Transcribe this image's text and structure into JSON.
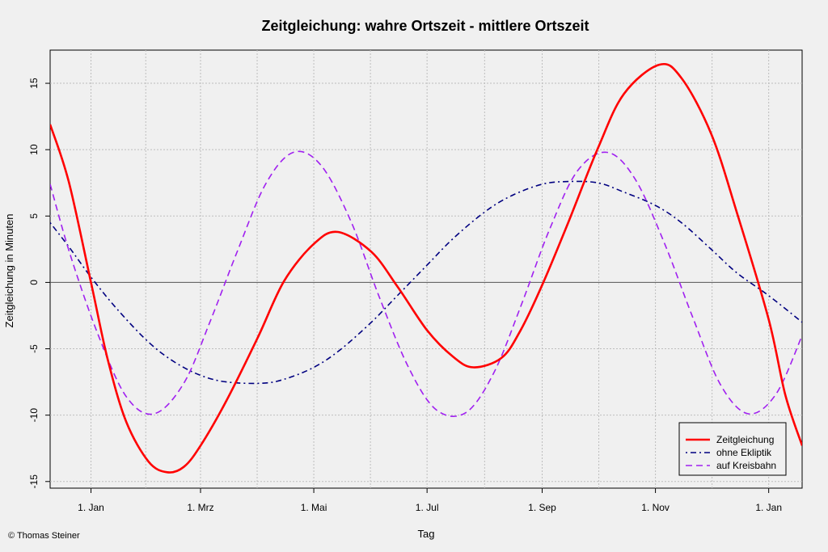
{
  "chart_data": {
    "type": "line",
    "title": "Zeitgleichung: wahre Ortszeit - mittlere Ortszeit",
    "xlabel": "Tag",
    "ylabel": "Zeitgleichung in Minuten",
    "xlim": [
      "2010-12-10",
      "2012-01-19"
    ],
    "ylim": [
      -15.5,
      17.5
    ],
    "x_ticks": [
      {
        "date": "2011-01-01",
        "label": "1. Jan"
      },
      {
        "date": "2011-03-01",
        "label": "1. Mrz"
      },
      {
        "date": "2011-05-01",
        "label": "1. Mai"
      },
      {
        "date": "2011-07-01",
        "label": "1. Jul"
      },
      {
        "date": "2011-09-01",
        "label": "1. Sep"
      },
      {
        "date": "2011-11-01",
        "label": "1. Nov"
      },
      {
        "date": "2012-01-01",
        "label": "1. Jan"
      }
    ],
    "y_ticks": [
      -15,
      -10,
      -5,
      0,
      5,
      10,
      15
    ],
    "grid": true,
    "legend_position": "bottom-right",
    "series": [
      {
        "name": "Zeitgleichung",
        "color": "#ff0000",
        "style": "solid",
        "points": [
          [
            "2010-12-10",
            11.9
          ],
          [
            "2010-12-20",
            7.6
          ],
          [
            "2011-01-01",
            0.0
          ],
          [
            "2011-01-10",
            -5.8
          ],
          [
            "2011-01-20",
            -10.5
          ],
          [
            "2011-02-01",
            -13.5
          ],
          [
            "2011-02-11",
            -14.3
          ],
          [
            "2011-02-20",
            -13.9
          ],
          [
            "2011-03-01",
            -12.3
          ],
          [
            "2011-03-15",
            -8.9
          ],
          [
            "2011-04-01",
            -4.1
          ],
          [
            "2011-04-15",
            0.1
          ],
          [
            "2011-05-01",
            2.9
          ],
          [
            "2011-05-14",
            3.8
          ],
          [
            "2011-06-01",
            2.3
          ],
          [
            "2011-06-15",
            -0.3
          ],
          [
            "2011-07-01",
            -3.6
          ],
          [
            "2011-07-15",
            -5.6
          ],
          [
            "2011-07-26",
            -6.4
          ],
          [
            "2011-08-10",
            -5.7
          ],
          [
            "2011-08-20",
            -3.7
          ],
          [
            "2011-09-01",
            -0.2
          ],
          [
            "2011-09-15",
            4.5
          ],
          [
            "2011-10-01",
            10.1
          ],
          [
            "2011-10-15",
            14.2
          ],
          [
            "2011-11-03",
            16.4
          ],
          [
            "2011-11-15",
            15.4
          ],
          [
            "2011-12-01",
            11.2
          ],
          [
            "2011-12-15",
            5.2
          ],
          [
            "2012-01-01",
            -2.8
          ],
          [
            "2012-01-10",
            -8.5
          ],
          [
            "2012-01-19",
            -12.3
          ]
        ]
      },
      {
        "name": "ohne Ekliptik",
        "color": "#000080",
        "style": "dashdot",
        "points": [
          [
            "2010-12-10",
            4.5
          ],
          [
            "2010-12-20",
            2.7
          ],
          [
            "2011-01-01",
            0.4
          ],
          [
            "2011-01-15",
            -2.0
          ],
          [
            "2011-02-01",
            -4.5
          ],
          [
            "2011-02-15",
            -6.0
          ],
          [
            "2011-03-01",
            -7.0
          ],
          [
            "2011-03-15",
            -7.5
          ],
          [
            "2011-04-03",
            -7.6
          ],
          [
            "2011-04-15",
            -7.3
          ],
          [
            "2011-05-01",
            -6.4
          ],
          [
            "2011-05-15",
            -5.1
          ],
          [
            "2011-06-01",
            -3.0
          ],
          [
            "2011-06-15",
            -1.0
          ],
          [
            "2011-07-01",
            1.3
          ],
          [
            "2011-07-15",
            3.3
          ],
          [
            "2011-08-01",
            5.3
          ],
          [
            "2011-08-15",
            6.5
          ],
          [
            "2011-09-01",
            7.4
          ],
          [
            "2011-09-15",
            7.6
          ],
          [
            "2011-10-01",
            7.5
          ],
          [
            "2011-10-15",
            6.8
          ],
          [
            "2011-11-01",
            5.8
          ],
          [
            "2011-11-15",
            4.5
          ],
          [
            "2011-12-01",
            2.5
          ],
          [
            "2011-12-15",
            0.7
          ],
          [
            "2012-01-01",
            -1.0
          ],
          [
            "2012-01-19",
            -3.0
          ]
        ]
      },
      {
        "name": "auf Kreisbahn",
        "color": "#a020f0",
        "style": "dashed",
        "points": [
          [
            "2010-12-10",
            7.4
          ],
          [
            "2010-12-21",
            2.0
          ],
          [
            "2011-01-05",
            -4.0
          ],
          [
            "2011-01-20",
            -8.6
          ],
          [
            "2011-02-04",
            -9.9
          ],
          [
            "2011-02-20",
            -7.6
          ],
          [
            "2011-03-06",
            -3.0
          ],
          [
            "2011-03-21",
            2.4
          ],
          [
            "2011-04-05",
            7.4
          ],
          [
            "2011-04-20",
            9.8
          ],
          [
            "2011-05-05",
            8.8
          ],
          [
            "2011-05-21",
            4.6
          ],
          [
            "2011-06-05",
            -1.0
          ],
          [
            "2011-06-21",
            -6.4
          ],
          [
            "2011-07-06",
            -9.6
          ],
          [
            "2011-07-22",
            -9.8
          ],
          [
            "2011-08-06",
            -6.8
          ],
          [
            "2011-08-21",
            -1.6
          ],
          [
            "2011-09-05",
            4.0
          ],
          [
            "2011-09-20",
            8.4
          ],
          [
            "2011-10-06",
            9.8
          ],
          [
            "2011-10-21",
            7.8
          ],
          [
            "2011-11-06",
            2.9
          ],
          [
            "2011-11-21",
            -2.6
          ],
          [
            "2011-12-06",
            -7.7
          ],
          [
            "2011-12-21",
            -9.9
          ],
          [
            "2012-01-05",
            -8.4
          ],
          [
            "2012-01-19",
            -4.0
          ]
        ]
      }
    ]
  },
  "credit": "© Thomas Steiner"
}
